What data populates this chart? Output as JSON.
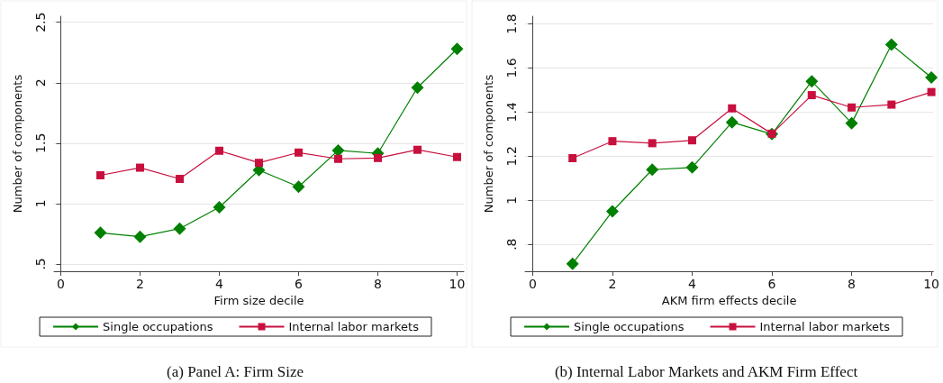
{
  "chart_data": [
    {
      "type": "line",
      "xlabel": "Firm size decile",
      "ylabel": "Number of components",
      "x": [
        1,
        2,
        3,
        4,
        5,
        6,
        7,
        8,
        9,
        10
      ],
      "series": [
        {
          "name": "Single occupations",
          "color": "#008000",
          "marker": "diamond",
          "values": [
            0.758,
            0.726,
            0.793,
            0.969,
            1.277,
            1.139,
            1.44,
            1.415,
            1.959,
            2.28
          ]
        },
        {
          "name": "Internal labor markets",
          "color": "#c8103e",
          "marker": "square",
          "values": [
            1.234,
            1.297,
            1.204,
            1.437,
            1.337,
            1.422,
            1.37,
            1.377,
            1.445,
            1.385
          ]
        }
      ],
      "xlim": [
        -0.17,
        10.17
      ],
      "xticks": [
        0,
        2,
        4,
        6,
        8,
        10
      ],
      "ylim": [
        0.44,
        2.55
      ],
      "yticks": [
        {
          "value": 0.5,
          "label": ".5"
        },
        1,
        1.5,
        2,
        2.5
      ],
      "grid": "y",
      "legend": "bottom",
      "annotations": [
        "(a) Panel A: Firm Size"
      ]
    },
    {
      "type": "line",
      "xlabel": "AKM firm effects decile",
      "ylabel": "Number of components",
      "x": [
        1,
        2,
        3,
        4,
        5,
        6,
        7,
        8,
        9,
        10
      ],
      "series": [
        {
          "name": "Single occupations",
          "color": "#008000",
          "marker": "diamond",
          "values": [
            0.712,
            0.95,
            1.139,
            1.149,
            1.354,
            1.3,
            1.54,
            1.35,
            1.706,
            1.557
          ]
        },
        {
          "name": "Internal labor markets",
          "color": "#c8103e",
          "marker": "square",
          "values": [
            1.191,
            1.268,
            1.259,
            1.272,
            1.417,
            1.302,
            1.477,
            1.421,
            1.434,
            1.491
          ]
        }
      ],
      "xlim": [
        -0.19,
        10.05
      ],
      "xticks": [
        0,
        2,
        4,
        6,
        8,
        10
      ],
      "ylim": [
        0.678,
        1.835
      ],
      "yticks": [
        {
          "value": 0.8,
          "label": ".8"
        },
        1,
        1.2,
        1.4,
        1.6,
        1.8
      ],
      "grid": "y",
      "legend": "bottom",
      "annotations": [
        "(b) Internal Labor Markets and AKM Firm Effect"
      ]
    }
  ]
}
